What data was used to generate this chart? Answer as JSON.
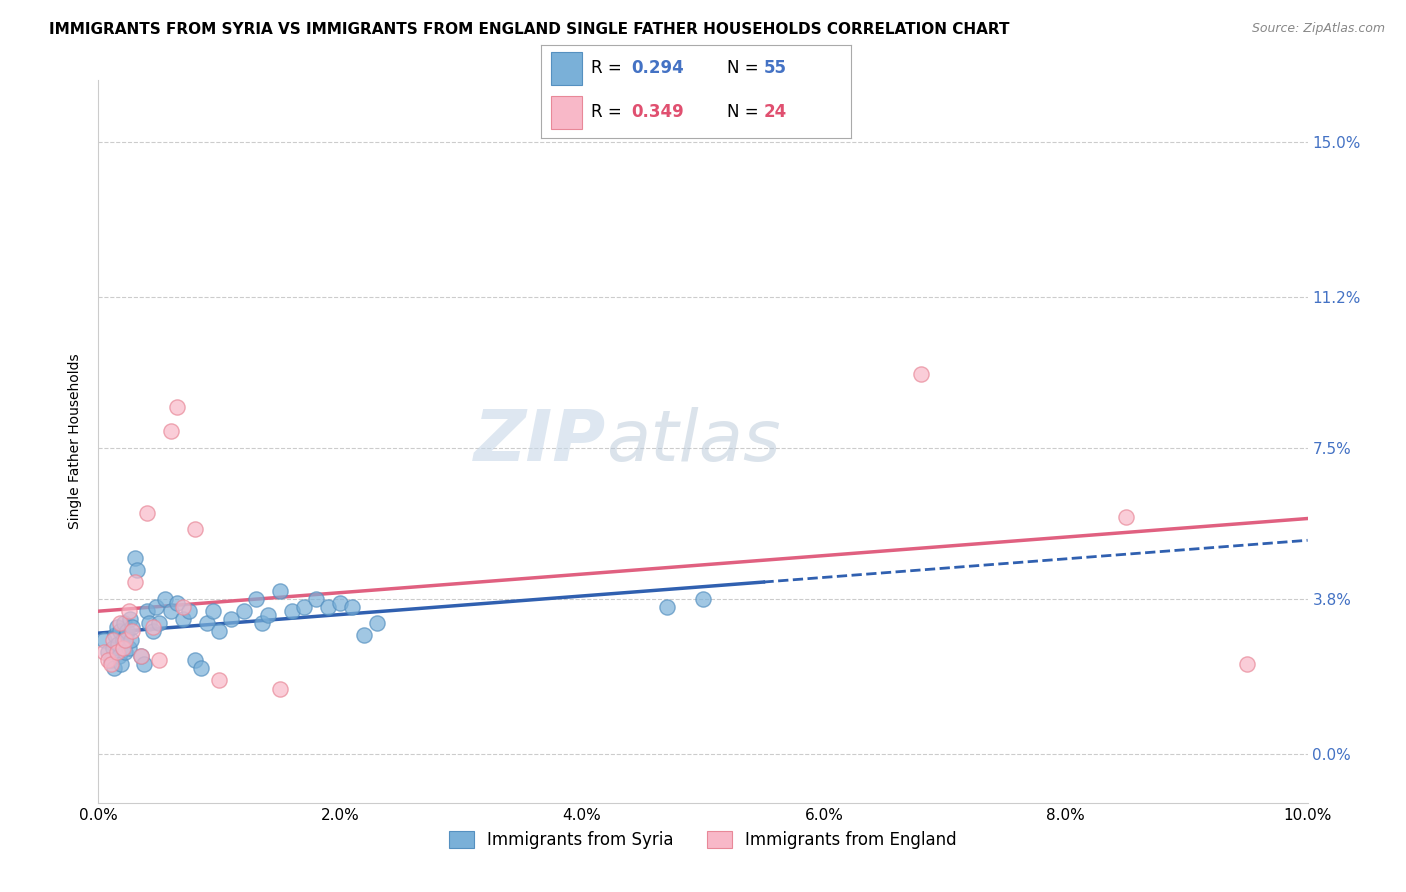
{
  "title": "IMMIGRANTS FROM SYRIA VS IMMIGRANTS FROM ENGLAND SINGLE FATHER HOUSEHOLDS CORRELATION CHART",
  "source": "Source: ZipAtlas.com",
  "ylabel": "Single Father Households",
  "xlim": [
    0.0,
    10.0
  ],
  "ylim": [
    -1.2,
    16.5
  ],
  "x_ticks": [
    0,
    2,
    4,
    6,
    8,
    10
  ],
  "x_tick_labels": [
    "0.0%",
    "2.0%",
    "4.0%",
    "6.0%",
    "8.0%",
    "10.0%"
  ],
  "y_ticks": [
    0.0,
    3.8,
    7.5,
    11.2,
    15.0
  ],
  "y_tick_labels": [
    "0.0%",
    "3.8%",
    "7.5%",
    "11.2%",
    "15.0%"
  ],
  "syria_color": "#7ab0d8",
  "syria_edge_color": "#5590c0",
  "england_color": "#f8b8c8",
  "england_edge_color": "#e88898",
  "syria_line_color": "#3060b0",
  "england_line_color": "#e06080",
  "R_syria": "0.294",
  "N_syria": "55",
  "R_england": "0.349",
  "N_england": "24",
  "legend_label_syria": "Immigrants from Syria",
  "legend_label_england": "Immigrants from England",
  "watermark_zip": "ZIP",
  "watermark_atlas": "atlas",
  "title_fontsize": 11,
  "axis_label_fontsize": 10,
  "tick_fontsize": 11,
  "legend_fontsize": 12,
  "watermark_fontsize": 52,
  "syria_scatter": [
    [
      0.05,
      2.8
    ],
    [
      0.08,
      2.5
    ],
    [
      0.1,
      2.3
    ],
    [
      0.12,
      2.6
    ],
    [
      0.13,
      2.1
    ],
    [
      0.14,
      2.9
    ],
    [
      0.15,
      3.1
    ],
    [
      0.16,
      2.7
    ],
    [
      0.17,
      2.4
    ],
    [
      0.18,
      3.0
    ],
    [
      0.19,
      2.2
    ],
    [
      0.2,
      2.8
    ],
    [
      0.21,
      3.2
    ],
    [
      0.22,
      2.5
    ],
    [
      0.23,
      2.9
    ],
    [
      0.24,
      3.0
    ],
    [
      0.25,
      2.6
    ],
    [
      0.26,
      3.3
    ],
    [
      0.27,
      2.8
    ],
    [
      0.28,
      3.1
    ],
    [
      0.3,
      4.8
    ],
    [
      0.32,
      4.5
    ],
    [
      0.35,
      2.4
    ],
    [
      0.38,
      2.2
    ],
    [
      0.4,
      3.5
    ],
    [
      0.42,
      3.2
    ],
    [
      0.45,
      3.0
    ],
    [
      0.48,
      3.6
    ],
    [
      0.5,
      3.2
    ],
    [
      0.55,
      3.8
    ],
    [
      0.6,
      3.5
    ],
    [
      0.65,
      3.7
    ],
    [
      0.7,
      3.3
    ],
    [
      0.75,
      3.5
    ],
    [
      0.8,
      2.3
    ],
    [
      0.85,
      2.1
    ],
    [
      0.9,
      3.2
    ],
    [
      0.95,
      3.5
    ],
    [
      1.0,
      3.0
    ],
    [
      1.1,
      3.3
    ],
    [
      1.2,
      3.5
    ],
    [
      1.3,
      3.8
    ],
    [
      1.35,
      3.2
    ],
    [
      1.4,
      3.4
    ],
    [
      1.5,
      4.0
    ],
    [
      1.6,
      3.5
    ],
    [
      1.7,
      3.6
    ],
    [
      1.8,
      3.8
    ],
    [
      1.9,
      3.6
    ],
    [
      2.0,
      3.7
    ],
    [
      2.1,
      3.6
    ],
    [
      2.2,
      2.9
    ],
    [
      2.3,
      3.2
    ],
    [
      5.0,
      3.8
    ],
    [
      4.7,
      3.6
    ]
  ],
  "england_scatter": [
    [
      0.05,
      2.5
    ],
    [
      0.08,
      2.3
    ],
    [
      0.1,
      2.2
    ],
    [
      0.12,
      2.8
    ],
    [
      0.15,
      2.5
    ],
    [
      0.18,
      3.2
    ],
    [
      0.2,
      2.6
    ],
    [
      0.22,
      2.8
    ],
    [
      0.25,
      3.5
    ],
    [
      0.28,
      3.0
    ],
    [
      0.3,
      4.2
    ],
    [
      0.35,
      2.4
    ],
    [
      0.4,
      5.9
    ],
    [
      0.45,
      3.1
    ],
    [
      0.5,
      2.3
    ],
    [
      0.6,
      7.9
    ],
    [
      0.65,
      8.5
    ],
    [
      0.7,
      3.6
    ],
    [
      0.8,
      5.5
    ],
    [
      1.0,
      1.8
    ],
    [
      1.5,
      1.6
    ],
    [
      6.8,
      9.3
    ],
    [
      8.5,
      5.8
    ],
    [
      9.5,
      2.2
    ]
  ]
}
